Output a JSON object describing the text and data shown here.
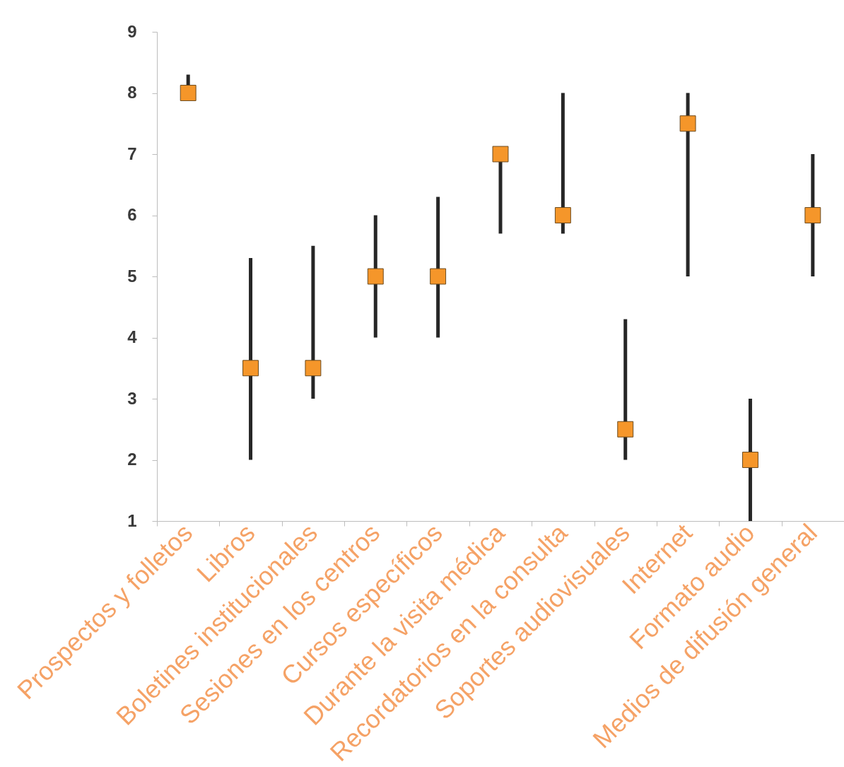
{
  "chart_data": {
    "type": "scatter",
    "categories": [
      "Prospectos y folletos",
      "Libros",
      "Boletines institucionales",
      "Sesiones en los centros",
      "Cursos específicos",
      "Durante la visita médica",
      "Recordatorios en la consulta",
      "Soportes audiovisuales",
      "Internet",
      "Formato audio",
      "Medios de difusión general"
    ],
    "values": [
      8,
      3.5,
      3.5,
      5,
      5,
      7,
      6,
      2.5,
      7.5,
      2,
      6
    ],
    "errors": [
      [
        8,
        8.3
      ],
      [
        2,
        5.3
      ],
      [
        3,
        5.5
      ],
      [
        4,
        6
      ],
      [
        4,
        6.3
      ],
      [
        5.7,
        7
      ],
      [
        5.7,
        8
      ],
      [
        2,
        4.3
      ],
      [
        5,
        8
      ],
      [
        1,
        3
      ],
      [
        5,
        7
      ]
    ],
    "color": "#f5962a",
    "ylim": [
      1,
      9
    ],
    "yticks": [
      1,
      2,
      3,
      4,
      5,
      6,
      7,
      8,
      9
    ],
    "marker": "square",
    "grid": false
  }
}
